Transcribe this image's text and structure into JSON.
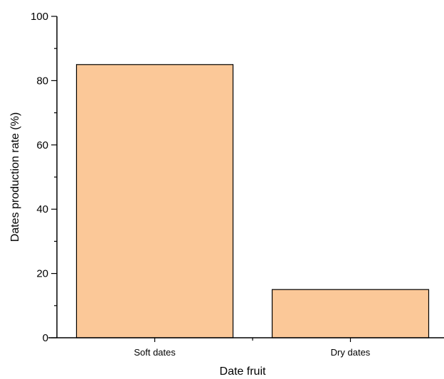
{
  "chart_data": {
    "type": "bar",
    "title": "",
    "xlabel": "Date fruit",
    "ylabel": "Dates production rate (%)",
    "categories": [
      "Soft dates",
      "Dry dates"
    ],
    "values": [
      85,
      15
    ],
    "ylim": [
      0,
      100
    ],
    "yticks": [
      0,
      20,
      40,
      60,
      80,
      100
    ],
    "grid": false,
    "legend": "none",
    "colors": {
      "bar_fill": "#fbc898",
      "bar_stroke": "#000000",
      "axis": "#000000"
    }
  }
}
